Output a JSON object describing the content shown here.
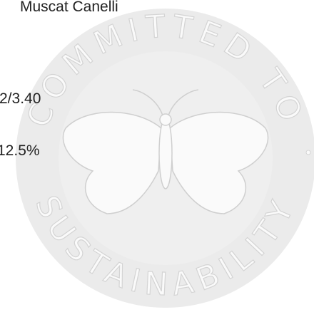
{
  "product": {
    "name": "Muscat Canelli",
    "ratio": "2/3.40",
    "abv": "12.5%"
  },
  "badge": {
    "top": "COMMITTED TO",
    "bottom": "SUSTAINABILITY"
  }
}
